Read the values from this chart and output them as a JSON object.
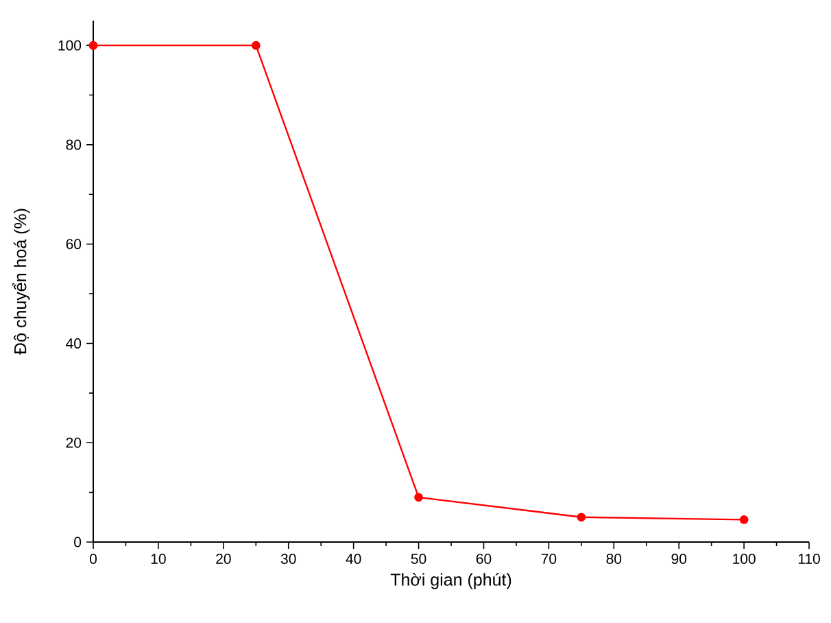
{
  "chart_data": {
    "type": "line",
    "xlabel": "Thời gian (phút)",
    "ylabel": "Độ chuyển hoá (%)",
    "x": [
      0,
      25,
      50,
      75,
      100
    ],
    "series": [
      {
        "color": "#ff0000",
        "values": [
          100,
          100,
          9,
          5,
          4.5
        ]
      }
    ],
    "xlim": [
      0,
      110
    ],
    "ylim": [
      0,
      105
    ],
    "xticks": [
      0,
      10,
      20,
      30,
      40,
      50,
      60,
      70,
      80,
      90,
      100,
      110
    ],
    "yticks": [
      0,
      20,
      40,
      60,
      80,
      100
    ],
    "grid": false,
    "marker": "circle",
    "line_style": "solid"
  }
}
